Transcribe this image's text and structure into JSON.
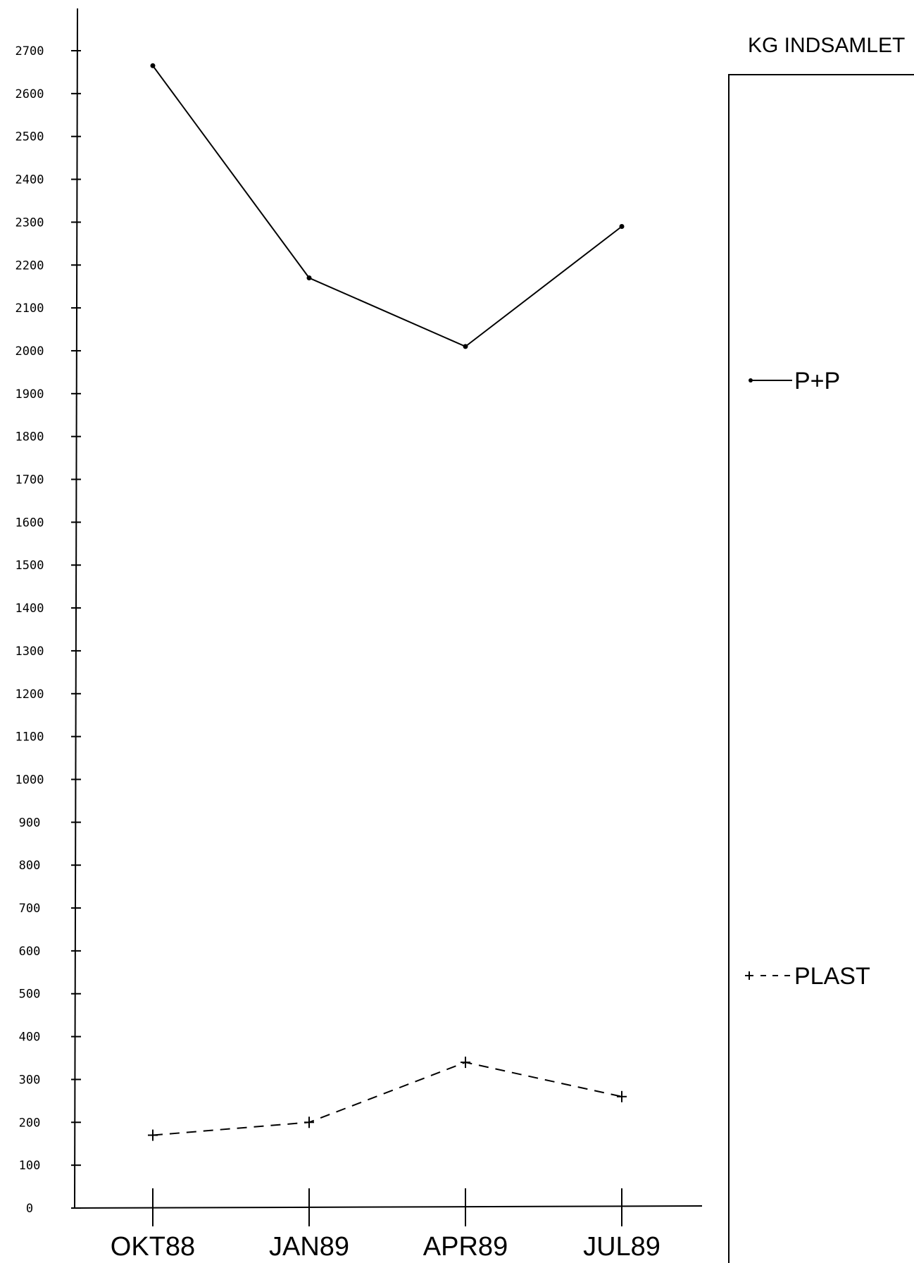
{
  "chart_data": {
    "type": "line",
    "title": "KG INDSAMLET",
    "xlabel": "",
    "ylabel": "",
    "categories": [
      "OKT88",
      "JAN89",
      "APR89",
      "JUL89"
    ],
    "ylim": [
      0,
      2700
    ],
    "yticks": [
      0,
      100,
      200,
      300,
      400,
      500,
      600,
      700,
      800,
      900,
      1000,
      1100,
      1200,
      1300,
      1400,
      1500,
      1600,
      1700,
      1800,
      1900,
      2000,
      2100,
      2200,
      2300,
      2400,
      2500,
      2600,
      2700
    ],
    "grid": false,
    "legend_position": "right",
    "series": [
      {
        "name": "P+P",
        "values": [
          2665,
          2170,
          2010,
          2290
        ],
        "marker": "dot",
        "line_style": "solid",
        "color": "#000000"
      },
      {
        "name": "PLAST",
        "values": [
          170,
          200,
          340,
          260
        ],
        "marker": "plus",
        "line_style": "dashed",
        "color": "#000000"
      }
    ]
  }
}
